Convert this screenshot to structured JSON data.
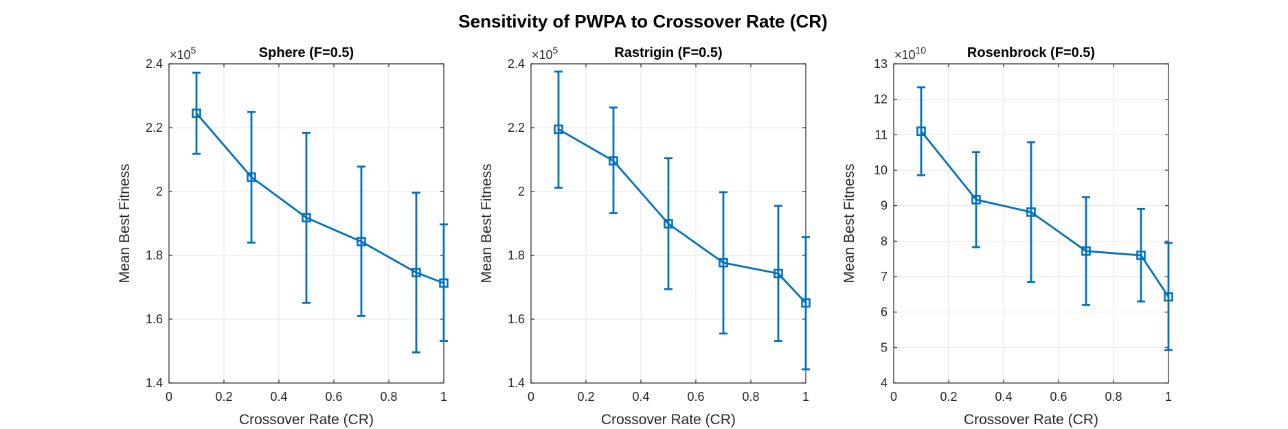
{
  "figure": {
    "title": "Sensitivity of PWPA to Crossover Rate (CR)"
  },
  "chart_data": [
    {
      "type": "line",
      "title": "Sphere (F=0.5)",
      "xlabel": "Crossover Rate (CR)",
      "ylabel": "Mean Best Fitness",
      "exponent_base": "×10",
      "exponent_power": "5",
      "xlim": [
        0,
        1
      ],
      "ylim": [
        1.4,
        2.4
      ],
      "xticks": [
        0,
        0.2,
        0.4,
        0.6,
        0.8,
        1
      ],
      "xtick_labels": [
        "0",
        "0.2",
        "0.4",
        "0.6",
        "0.8",
        "1"
      ],
      "yticks": [
        1.4,
        1.6,
        1.8,
        2.0,
        2.2,
        2.4
      ],
      "ytick_labels": [
        "1.4",
        "1.6",
        "1.8",
        "2",
        "2.2",
        "2.4"
      ],
      "grid": true,
      "color": "#0072BD",
      "marker": "square",
      "series": [
        {
          "x": [
            0.1,
            0.3,
            0.5,
            0.7,
            0.9,
            1.0
          ],
          "y": [
            2.245,
            2.045,
            1.918,
            1.843,
            1.746,
            1.713
          ],
          "err_lower": [
            2.118,
            1.84,
            1.651,
            1.61,
            1.496,
            1.532
          ],
          "err_upper": [
            2.372,
            2.249,
            2.184,
            2.078,
            1.996,
            1.897
          ]
        }
      ]
    },
    {
      "type": "line",
      "title": "Rastrigin (F=0.5)",
      "xlabel": "Crossover Rate (CR)",
      "ylabel": "Mean Best Fitness",
      "exponent_base": "×10",
      "exponent_power": "5",
      "xlim": [
        0,
        1
      ],
      "ylim": [
        1.4,
        2.4
      ],
      "xticks": [
        0,
        0.2,
        0.4,
        0.6,
        0.8,
        1
      ],
      "xtick_labels": [
        "0",
        "0.2",
        "0.4",
        "0.6",
        "0.8",
        "1"
      ],
      "yticks": [
        1.4,
        1.6,
        1.8,
        2.0,
        2.2,
        2.4
      ],
      "ytick_labels": [
        "1.4",
        "1.6",
        "1.8",
        "2",
        "2.2",
        "2.4"
      ],
      "grid": true,
      "color": "#0072BD",
      "marker": "square",
      "series": [
        {
          "x": [
            0.1,
            0.3,
            0.5,
            0.7,
            0.9,
            1.0
          ],
          "y": [
            2.195,
            2.096,
            1.899,
            1.777,
            1.743,
            1.651
          ],
          "err_lower": [
            2.012,
            1.932,
            1.694,
            1.555,
            1.532,
            1.443
          ],
          "err_upper": [
            2.376,
            2.263,
            2.104,
            1.998,
            1.955,
            1.857
          ]
        }
      ]
    },
    {
      "type": "line",
      "title": "Rosenbrock (F=0.5)",
      "xlabel": "Crossover Rate (CR)",
      "ylabel": "Mean Best Fitness",
      "exponent_base": "×10",
      "exponent_power": "10",
      "xlim": [
        0,
        1
      ],
      "ylim": [
        4,
        13
      ],
      "xticks": [
        0,
        0.2,
        0.4,
        0.6,
        0.8,
        1
      ],
      "xtick_labels": [
        "0",
        "0.2",
        "0.4",
        "0.6",
        "0.8",
        "1"
      ],
      "yticks": [
        4,
        5,
        6,
        7,
        8,
        9,
        10,
        11,
        12,
        13
      ],
      "ytick_labels": [
        "4",
        "5",
        "6",
        "7",
        "8",
        "9",
        "10",
        "11",
        "12",
        "13"
      ],
      "grid": true,
      "color": "#0072BD",
      "marker": "square",
      "series": [
        {
          "x": [
            0.1,
            0.3,
            0.5,
            0.7,
            0.9,
            1.0
          ],
          "y": [
            11.1,
            9.17,
            8.82,
            7.72,
            7.6,
            6.43
          ],
          "err_lower": [
            9.86,
            7.83,
            6.85,
            6.2,
            6.3,
            4.93
          ],
          "err_upper": [
            12.34,
            10.51,
            10.79,
            9.24,
            8.91,
            7.95
          ]
        }
      ]
    }
  ]
}
